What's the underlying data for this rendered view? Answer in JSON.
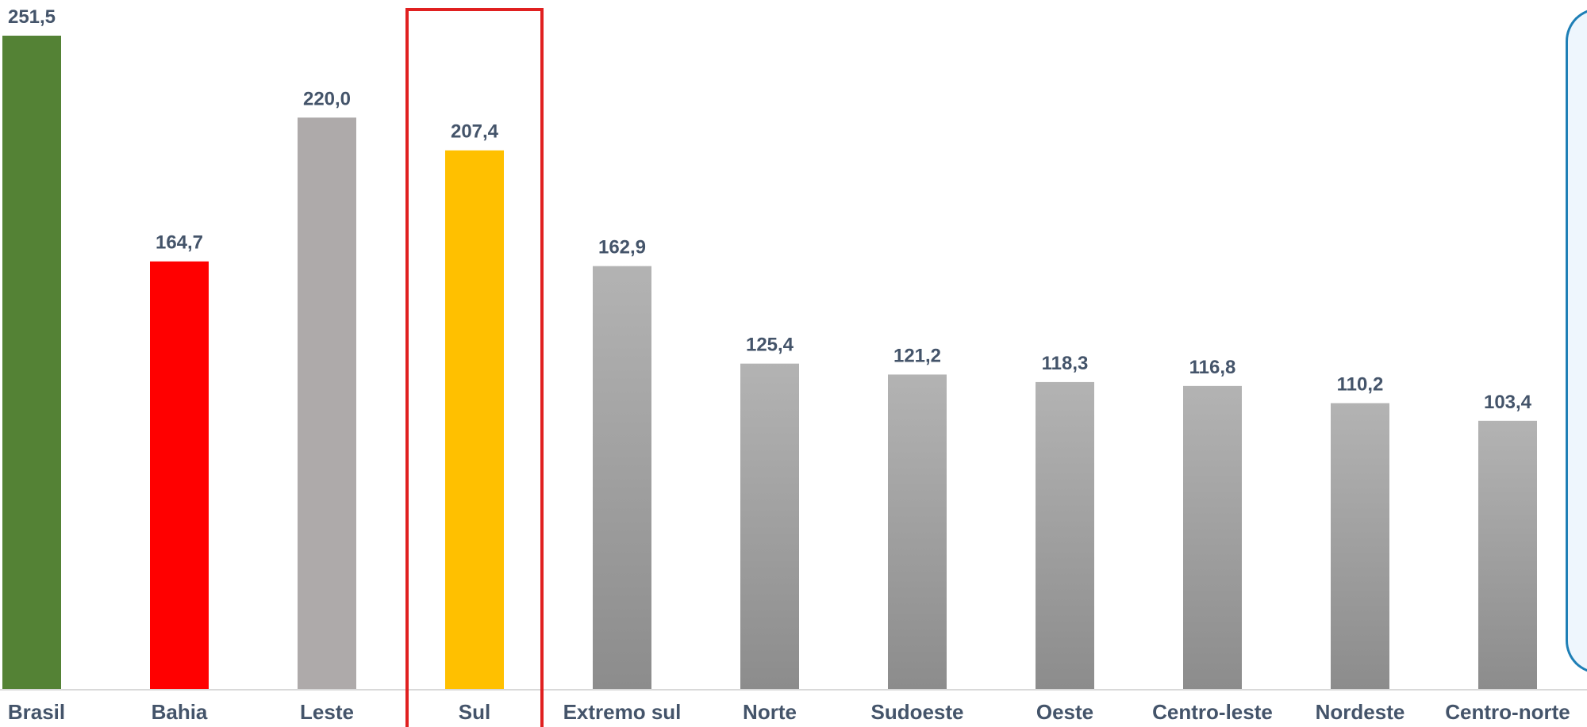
{
  "chart_data": {
    "type": "bar",
    "categories": [
      "Brasil",
      "Bahia",
      "Leste",
      "Sul",
      "Extremo sul",
      "Norte",
      "Sudoeste",
      "Oeste",
      "Centro-leste",
      "Nordeste",
      "Centro-norte"
    ],
    "values": [
      251.5,
      164.7,
      220.0,
      207.4,
      162.9,
      125.4,
      121.2,
      118.3,
      116.8,
      110.2,
      103.4
    ],
    "value_labels": [
      "251,5",
      "164,7",
      "220,0",
      "207,4",
      "162,9",
      "125,4",
      "121,2",
      "118,3",
      "116,8",
      "110,2",
      "103,4"
    ],
    "colors": [
      "#548235",
      "#ff0000",
      "#aeaaaa",
      "#ffc000",
      "#a6a6a6",
      "#a6a6a6",
      "#a6a6a6",
      "#a6a6a6",
      "#a6a6a6",
      "#a6a6a6",
      "#a6a6a6"
    ],
    "highlighted_category": "Sul",
    "highlight_color": "#e02020",
    "title": "",
    "xlabel": "",
    "ylabel": "",
    "ylim": [
      0,
      260
    ],
    "grid": false,
    "legend": "none"
  }
}
